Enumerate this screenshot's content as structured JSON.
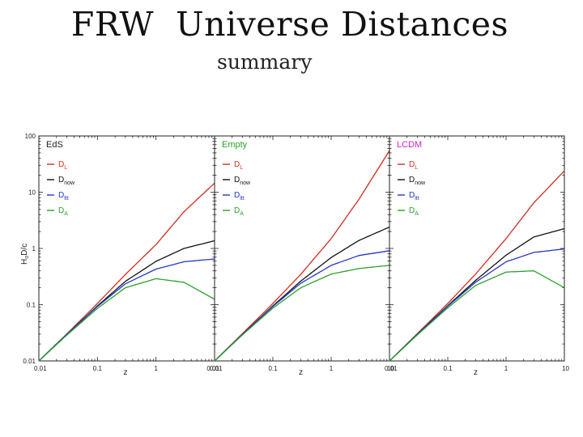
{
  "slide": {
    "title": "FRW  Universe Distances",
    "subtitle": "summary"
  },
  "chart_data": {
    "type": "line",
    "xlabel": "z",
    "ylabel": "HoD/c",
    "ylabel_main": "H",
    "ylabel_sub": "o",
    "ylabel_rest": "D/c",
    "xscale": "log",
    "yscale": "log",
    "xlim": [
      0.01,
      10
    ],
    "ylim": [
      0.01,
      100
    ],
    "x_ticks": [
      "0.01",
      "0.1",
      "z",
      "1"
    ],
    "y_ticks": [
      "0.01",
      "0.1",
      "1",
      "10",
      "100"
    ],
    "legend_placement": "top-left",
    "grid": false,
    "series_defs": [
      {
        "key": "DL",
        "name": "D",
        "sub": "L",
        "color": "#d42c1e"
      },
      {
        "key": "Dnow",
        "name": "D",
        "sub": "now",
        "color": "#111111"
      },
      {
        "key": "Dltt",
        "name": "D",
        "sub": "ltt",
        "color": "#2537c4"
      },
      {
        "key": "DA",
        "name": "D",
        "sub": "A",
        "color": "#2aa12a"
      }
    ],
    "panels": [
      {
        "label": "EdS",
        "label_color": "#222222",
        "x_ticks": [
          "0.01",
          "0.1",
          "1",
          "0.01"
        ],
        "x": [
          0.01,
          0.03,
          0.1,
          0.3,
          1,
          3,
          10
        ],
        "series": {
          "DL": [
            0.01,
            0.0302,
            0.105,
            0.345,
            1.17,
            4.5,
            14.5
          ],
          "Dnow": [
            0.01,
            0.0296,
            0.095,
            0.26,
            0.59,
            1.0,
            1.37
          ],
          "Dltt": [
            0.01,
            0.0296,
            0.093,
            0.235,
            0.43,
            0.58,
            0.65
          ],
          "DA": [
            0.01,
            0.0288,
            0.086,
            0.2,
            0.29,
            0.25,
            0.125
          ]
        }
      },
      {
        "label": "Empty",
        "label_color": "#2aa12a",
        "x_ticks": [
          "0.01",
          "0.1",
          "1",
          "10"
        ],
        "x": [
          0.01,
          0.03,
          0.1,
          0.3,
          1,
          3,
          10
        ],
        "series": {
          "DL": [
            0.01,
            0.0305,
            0.105,
            0.345,
            1.5,
            7.5,
            55
          ],
          "Dnow": [
            0.01,
            0.0296,
            0.095,
            0.262,
            0.69,
            1.39,
            2.4
          ],
          "Dltt": [
            0.01,
            0.0296,
            0.093,
            0.24,
            0.5,
            0.75,
            0.91
          ],
          "DA": [
            0.01,
            0.029,
            0.087,
            0.2,
            0.35,
            0.44,
            0.5
          ]
        }
      },
      {
        "label": "LCDM",
        "label_color": "#cc22cc",
        "x_ticks": [
          "0.01",
          "0.1",
          "1",
          "10"
        ],
        "x": [
          0.01,
          0.03,
          0.1,
          0.3,
          1,
          3,
          10
        ],
        "series": {
          "DL": [
            0.01,
            0.0305,
            0.105,
            0.35,
            1.5,
            6.5,
            24
          ],
          "Dnow": [
            0.01,
            0.0298,
            0.096,
            0.27,
            0.76,
            1.6,
            2.25
          ],
          "Dltt": [
            0.01,
            0.0297,
            0.094,
            0.25,
            0.58,
            0.85,
            0.98
          ],
          "DA": [
            0.01,
            0.029,
            0.088,
            0.22,
            0.38,
            0.4,
            0.2
          ]
        }
      }
    ]
  }
}
